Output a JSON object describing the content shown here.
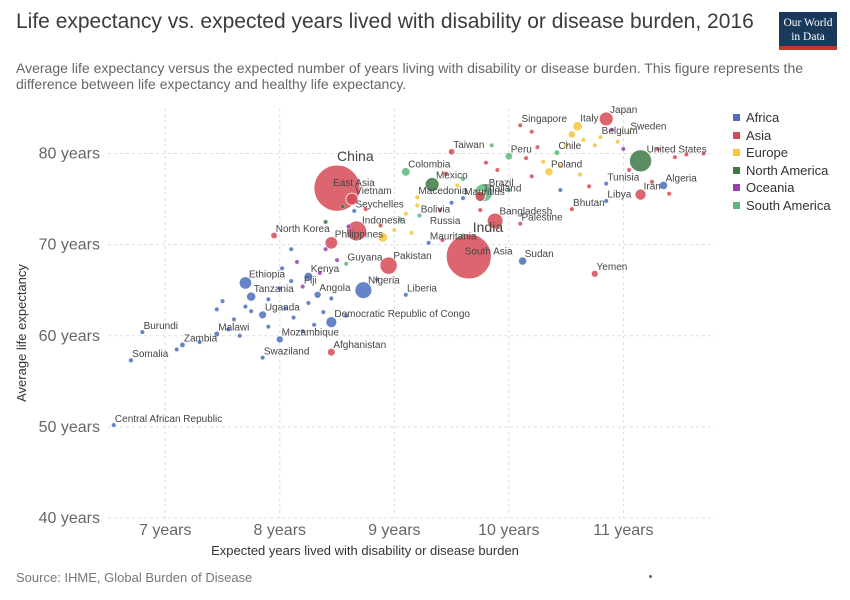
{
  "header": {
    "title": "Life expectancy vs. expected years lived with disability or disease burden, 2016",
    "subtitle": "Average life expectancy versus the expected number of years living with disability or disease burden. This figure represents the difference between life expectancy and healthy life expectancy.",
    "logo_line1": "Our World",
    "logo_line2": "in Data"
  },
  "footer": {
    "source": "Source: IHME, Global Burden of Disease"
  },
  "colors": {
    "Africa": "#4c6fbf",
    "Asia": "#d64a57",
    "Europe": "#f6c63a",
    "North America": "#3d7a45",
    "Oceania": "#9b3fb0",
    "South America": "#5cb87a"
  },
  "chart_data": {
    "type": "scatter",
    "xlabel": "Expected years lived with disability or disease burden",
    "ylabel": "Average life expectancy",
    "xlim": [
      6.5,
      11.8
    ],
    "ylim": [
      40,
      85
    ],
    "x_ticks": [
      7,
      8,
      9,
      10,
      11
    ],
    "x_tick_labels": [
      "7 years",
      "8 years",
      "9 years",
      "10 years",
      "11 years"
    ],
    "y_ticks": [
      40,
      50,
      60,
      70,
      80
    ],
    "y_tick_labels": [
      "40 years",
      "50 years",
      "60 years",
      "70 years",
      "80 years"
    ],
    "grid": true,
    "legend_position": "right",
    "legend": [
      "Africa",
      "Asia",
      "Europe",
      "North America",
      "Oceania",
      "South America"
    ],
    "points": [
      {
        "label": "China",
        "x": 8.5,
        "y": 76.2,
        "continent": "Asia",
        "size": 1380
      },
      {
        "label": "East Asia",
        "x": 8.5,
        "y": 76.2,
        "continent": "Asia",
        "size": 0
      },
      {
        "label": "India",
        "x": 9.65,
        "y": 68.7,
        "continent": "Asia",
        "size": 1320
      },
      {
        "label": "South Asia",
        "x": 9.65,
        "y": 68.7,
        "continent": "Asia",
        "size": 0
      },
      {
        "label": "United States",
        "x": 11.15,
        "y": 79.2,
        "continent": "North America",
        "size": 320
      },
      {
        "label": "Indonesia",
        "x": 8.67,
        "y": 71.5,
        "continent": "Asia",
        "size": 260
      },
      {
        "label": "Brazil",
        "x": 9.78,
        "y": 75.7,
        "continent": "South America",
        "size": 210
      },
      {
        "label": "Pakistan",
        "x": 8.95,
        "y": 67.7,
        "continent": "Asia",
        "size": 195
      },
      {
        "label": "Nigeria",
        "x": 8.73,
        "y": 65.0,
        "continent": "Africa",
        "size": 186
      },
      {
        "label": "Bangladesh",
        "x": 9.88,
        "y": 72.6,
        "continent": "Asia",
        "size": 163
      },
      {
        "label": "Russia",
        "x": 9.3,
        "y": 71.9,
        "continent": "Europe",
        "size": 0
      },
      {
        "label": "Mexico",
        "x": 9.33,
        "y": 76.6,
        "continent": "North America",
        "size": 128
      },
      {
        "label": "Japan",
        "x": 10.85,
        "y": 83.8,
        "continent": "Asia",
        "size": 127
      },
      {
        "label": "Ethiopia",
        "x": 7.7,
        "y": 65.8,
        "continent": "Africa",
        "size": 102
      },
      {
        "label": "Philippines",
        "x": 8.45,
        "y": 70.2,
        "continent": "Asia",
        "size": 103
      },
      {
        "label": "Vietnam",
        "x": 8.63,
        "y": 75.0,
        "continent": "Asia",
        "size": 94
      },
      {
        "label": "Democratic Republic of Congo",
        "x": 8.45,
        "y": 61.5,
        "continent": "Africa",
        "size": 79
      },
      {
        "label": "Iran",
        "x": 11.15,
        "y": 75.5,
        "continent": "Asia",
        "size": 80
      },
      {
        "label": "Thailand",
        "x": 9.75,
        "y": 75.3,
        "continent": "Asia",
        "size": 69
      },
      {
        "label": "Tanzania",
        "x": 7.75,
        "y": 64.3,
        "continent": "Africa",
        "size": 56
      },
      {
        "label": "Colombia",
        "x": 9.1,
        "y": 78.0,
        "continent": "South America",
        "size": 49
      },
      {
        "label": "Kenya",
        "x": 8.25,
        "y": 66.5,
        "continent": "Africa",
        "size": 49
      },
      {
        "label": "Sudan",
        "x": 10.12,
        "y": 68.2,
        "continent": "Africa",
        "size": 40
      },
      {
        "label": "Uganda",
        "x": 7.85,
        "y": 62.3,
        "continent": "Africa",
        "size": 42
      },
      {
        "label": "Algeria",
        "x": 11.35,
        "y": 76.5,
        "continent": "Africa",
        "size": 41
      },
      {
        "label": "Peru",
        "x": 10.0,
        "y": 79.7,
        "continent": "South America",
        "size": 31
      },
      {
        "label": "Mozambique",
        "x": 8.0,
        "y": 59.6,
        "continent": "Africa",
        "size": 29
      },
      {
        "label": "North Korea",
        "x": 7.95,
        "y": 71.0,
        "continent": "Asia",
        "size": 25
      },
      {
        "label": "Angola",
        "x": 8.33,
        "y": 64.5,
        "continent": "Africa",
        "size": 29
      },
      {
        "label": "Poland",
        "x": 10.35,
        "y": 78.0,
        "continent": "Europe",
        "size": 38
      },
      {
        "label": "Italy",
        "x": 10.6,
        "y": 83.0,
        "continent": "Europe",
        "size": 60
      },
      {
        "label": "Chile",
        "x": 10.42,
        "y": 80.1,
        "continent": "South America",
        "size": 18
      },
      {
        "label": "Malawi",
        "x": 7.45,
        "y": 60.2,
        "continent": "Africa",
        "size": 18
      },
      {
        "label": "Zambia",
        "x": 7.15,
        "y": 59.0,
        "continent": "Africa",
        "size": 17
      },
      {
        "label": "Taiwan",
        "x": 9.5,
        "y": 80.2,
        "continent": "Asia",
        "size": 24
      },
      {
        "label": "Somalia",
        "x": 6.7,
        "y": 57.3,
        "continent": "Africa",
        "size": 14
      },
      {
        "label": "Burundi",
        "x": 6.8,
        "y": 60.4,
        "continent": "Africa",
        "size": 11
      },
      {
        "label": "Tunisia",
        "x": 10.85,
        "y": 76.7,
        "continent": "Africa",
        "size": 11
      },
      {
        "label": "Bolivia",
        "x": 9.22,
        "y": 73.2,
        "continent": "South America",
        "size": 11
      },
      {
        "label": "Belgium",
        "x": 10.8,
        "y": 81.8,
        "continent": "Europe",
        "size": 11
      },
      {
        "label": "Sweden",
        "x": 11.05,
        "y": 82.3,
        "continent": "Europe",
        "size": 10
      },
      {
        "label": "Yemen",
        "x": 10.75,
        "y": 66.8,
        "continent": "Asia",
        "size": 28
      },
      {
        "label": "Afghanistan",
        "x": 8.45,
        "y": 58.2,
        "continent": "Asia",
        "size": 35
      },
      {
        "label": "Libya",
        "x": 10.85,
        "y": 74.8,
        "continent": "Africa",
        "size": 6
      },
      {
        "label": "Bhutan",
        "x": 10.55,
        "y": 73.9,
        "continent": "Asia",
        "size": 1
      },
      {
        "label": "Singapore",
        "x": 10.1,
        "y": 83.1,
        "continent": "Asia",
        "size": 6
      },
      {
        "label": "Palestine",
        "x": 10.1,
        "y": 72.3,
        "continent": "Asia",
        "size": 5
      },
      {
        "label": "Mauritania",
        "x": 9.3,
        "y": 70.2,
        "continent": "Africa",
        "size": 4
      },
      {
        "label": "Guyana",
        "x": 8.58,
        "y": 67.9,
        "continent": "South America",
        "size": 1
      },
      {
        "label": "Fiji",
        "x": 8.2,
        "y": 65.4,
        "continent": "Oceania",
        "size": 1
      },
      {
        "label": "Liberia",
        "x": 9.1,
        "y": 64.5,
        "continent": "Africa",
        "size": 5
      },
      {
        "label": "Swaziland",
        "x": 7.85,
        "y": 57.6,
        "continent": "Africa",
        "size": 1
      },
      {
        "label": "Central African Republic",
        "x": 6.55,
        "y": 50.2,
        "continent": "Africa",
        "size": 5
      },
      {
        "label": "Seychelles",
        "x": 8.65,
        "y": 73.7,
        "continent": "Africa",
        "size": 1
      },
      {
        "label": "Macedonia",
        "x": 9.2,
        "y": 75.2,
        "continent": "Europe",
        "size": 2
      },
      {
        "label": "Mauritius",
        "x": 9.6,
        "y": 75.1,
        "continent": "Africa",
        "size": 1
      },
      {
        "label": "",
        "x": 9.45,
        "y": 77.8,
        "continent": "Asia",
        "size": 1
      },
      {
        "label": "",
        "x": 9.6,
        "y": 77.2,
        "continent": "South America",
        "size": 1
      },
      {
        "label": "",
        "x": 9.55,
        "y": 76.5,
        "continent": "Europe",
        "size": 1
      },
      {
        "label": "",
        "x": 9.5,
        "y": 74.6,
        "continent": "Africa",
        "size": 1
      },
      {
        "label": "",
        "x": 9.4,
        "y": 73.8,
        "continent": "Asia",
        "size": 1
      },
      {
        "label": "",
        "x": 9.2,
        "y": 74.3,
        "continent": "Europe",
        "size": 1
      },
      {
        "label": "",
        "x": 9.1,
        "y": 73.4,
        "continent": "Europe",
        "size": 1
      },
      {
        "label": "",
        "x": 9.05,
        "y": 72.8,
        "continent": "South America",
        "size": 1
      },
      {
        "label": "",
        "x": 9.0,
        "y": 71.6,
        "continent": "Europe",
        "size": 1
      },
      {
        "label": "",
        "x": 8.88,
        "y": 72.1,
        "continent": "Asia",
        "size": 1
      },
      {
        "label": "",
        "x": 8.9,
        "y": 70.8,
        "continent": "Europe",
        "size": 60
      },
      {
        "label": "",
        "x": 9.15,
        "y": 71.3,
        "continent": "Europe",
        "size": 1
      },
      {
        "label": "",
        "x": 9.6,
        "y": 71.0,
        "continent": "South America",
        "size": 1
      },
      {
        "label": "",
        "x": 9.42,
        "y": 70.5,
        "continent": "Asia",
        "size": 1
      },
      {
        "label": "",
        "x": 9.8,
        "y": 79.0,
        "continent": "Asia",
        "size": 1
      },
      {
        "label": "",
        "x": 9.9,
        "y": 78.2,
        "continent": "Asia",
        "size": 1
      },
      {
        "label": "",
        "x": 10.2,
        "y": 77.5,
        "continent": "Asia",
        "size": 1
      },
      {
        "label": "",
        "x": 10.3,
        "y": 79.1,
        "continent": "Europe",
        "size": 1
      },
      {
        "label": "",
        "x": 10.45,
        "y": 78.6,
        "continent": "Europe",
        "size": 1
      },
      {
        "label": "",
        "x": 10.65,
        "y": 81.5,
        "continent": "Europe",
        "size": 1
      },
      {
        "label": "",
        "x": 10.55,
        "y": 82.1,
        "continent": "Europe",
        "size": 30
      },
      {
        "label": "",
        "x": 10.75,
        "y": 80.9,
        "continent": "Europe",
        "size": 1
      },
      {
        "label": "",
        "x": 10.95,
        "y": 81.3,
        "continent": "Europe",
        "size": 1
      },
      {
        "label": "",
        "x": 11.0,
        "y": 80.5,
        "continent": "Oceania",
        "size": 1
      },
      {
        "label": "",
        "x": 10.9,
        "y": 82.6,
        "continent": "Oceania",
        "size": 1
      },
      {
        "label": "",
        "x": 10.25,
        "y": 80.7,
        "continent": "Asia",
        "size": 1
      },
      {
        "label": "",
        "x": 10.2,
        "y": 82.4,
        "continent": "Asia",
        "size": 1
      },
      {
        "label": "",
        "x": 10.5,
        "y": 80.9,
        "continent": "Europe",
        "size": 1
      },
      {
        "label": "",
        "x": 10.62,
        "y": 77.7,
        "continent": "Europe",
        "size": 1
      },
      {
        "label": "",
        "x": 10.7,
        "y": 76.4,
        "continent": "Asia",
        "size": 1
      },
      {
        "label": "",
        "x": 10.45,
        "y": 76.0,
        "continent": "Africa",
        "size": 1
      },
      {
        "label": "",
        "x": 11.05,
        "y": 78.2,
        "continent": "Asia",
        "size": 1
      },
      {
        "label": "",
        "x": 11.3,
        "y": 80.5,
        "continent": "Asia",
        "size": 1
      },
      {
        "label": "",
        "x": 11.45,
        "y": 79.6,
        "continent": "Asia",
        "size": 1
      },
      {
        "label": "",
        "x": 11.55,
        "y": 79.9,
        "continent": "Asia",
        "size": 1
      },
      {
        "label": "",
        "x": 11.7,
        "y": 80.0,
        "continent": "Asia",
        "size": 1
      },
      {
        "label": "",
        "x": 11.25,
        "y": 76.9,
        "continent": "Asia",
        "size": 1
      },
      {
        "label": "",
        "x": 11.4,
        "y": 75.6,
        "continent": "Asia",
        "size": 1
      },
      {
        "label": "",
        "x": 9.85,
        "y": 80.9,
        "continent": "South America",
        "size": 1
      },
      {
        "label": "",
        "x": 10.15,
        "y": 79.5,
        "continent": "Asia",
        "size": 1
      },
      {
        "label": "",
        "x": 10.0,
        "y": 76.0,
        "continent": "South America",
        "size": 1
      },
      {
        "label": "",
        "x": 9.75,
        "y": 73.8,
        "continent": "Asia",
        "size": 1
      },
      {
        "label": "",
        "x": 8.4,
        "y": 72.5,
        "continent": "North America",
        "size": 1
      },
      {
        "label": "",
        "x": 8.55,
        "y": 74.2,
        "continent": "North America",
        "size": 1
      },
      {
        "label": "",
        "x": 8.75,
        "y": 73.9,
        "continent": "Asia",
        "size": 1
      },
      {
        "label": "",
        "x": 8.6,
        "y": 72.0,
        "continent": "Oceania",
        "size": 1
      },
      {
        "label": "",
        "x": 8.4,
        "y": 69.5,
        "continent": "Oceania",
        "size": 1
      },
      {
        "label": "",
        "x": 8.5,
        "y": 68.3,
        "continent": "Oceania",
        "size": 1
      },
      {
        "label": "",
        "x": 8.1,
        "y": 69.5,
        "continent": "Africa",
        "size": 1
      },
      {
        "label": "",
        "x": 8.15,
        "y": 68.1,
        "continent": "Oceania",
        "size": 1
      },
      {
        "label": "",
        "x": 8.02,
        "y": 67.4,
        "continent": "Africa",
        "size": 1
      },
      {
        "label": "",
        "x": 8.35,
        "y": 66.9,
        "continent": "Oceania",
        "size": 1
      },
      {
        "label": "",
        "x": 8.1,
        "y": 66.0,
        "continent": "Africa",
        "size": 1
      },
      {
        "label": "",
        "x": 8.0,
        "y": 65.2,
        "continent": "Africa",
        "size": 1
      },
      {
        "label": "",
        "x": 7.9,
        "y": 64.0,
        "continent": "Africa",
        "size": 1
      },
      {
        "label": "",
        "x": 8.25,
        "y": 63.6,
        "continent": "Africa",
        "size": 1
      },
      {
        "label": "",
        "x": 8.05,
        "y": 63.0,
        "continent": "Africa",
        "size": 1
      },
      {
        "label": "",
        "x": 7.75,
        "y": 62.7,
        "continent": "Africa",
        "size": 1
      },
      {
        "label": "",
        "x": 7.6,
        "y": 61.8,
        "continent": "Africa",
        "size": 1
      },
      {
        "label": "",
        "x": 7.55,
        "y": 60.7,
        "continent": "Africa",
        "size": 1
      },
      {
        "label": "",
        "x": 7.45,
        "y": 62.9,
        "continent": "Africa",
        "size": 1
      },
      {
        "label": "",
        "x": 7.5,
        "y": 63.8,
        "continent": "Africa",
        "size": 1
      },
      {
        "label": "",
        "x": 7.3,
        "y": 59.3,
        "continent": "Africa",
        "size": 1
      },
      {
        "label": "",
        "x": 7.65,
        "y": 60.0,
        "continent": "Africa",
        "size": 1
      },
      {
        "label": "",
        "x": 7.9,
        "y": 61.0,
        "continent": "Africa",
        "size": 1
      },
      {
        "label": "",
        "x": 8.12,
        "y": 62.0,
        "continent": "Africa",
        "size": 1
      },
      {
        "label": "",
        "x": 8.3,
        "y": 61.2,
        "continent": "Africa",
        "size": 1
      },
      {
        "label": "",
        "x": 8.38,
        "y": 62.6,
        "continent": "Africa",
        "size": 1
      },
      {
        "label": "",
        "x": 8.58,
        "y": 62.2,
        "continent": "Africa",
        "size": 1
      },
      {
        "label": "",
        "x": 7.1,
        "y": 58.5,
        "continent": "Africa",
        "size": 1
      },
      {
        "label": "",
        "x": 7.7,
        "y": 63.2,
        "continent": "Africa",
        "size": 1
      },
      {
        "label": "",
        "x": 8.45,
        "y": 64.1,
        "continent": "Africa",
        "size": 1
      },
      {
        "label": "",
        "x": 8.85,
        "y": 66.2,
        "continent": "Africa",
        "size": 1
      },
      {
        "label": "",
        "x": 8.2,
        "y": 60.5,
        "continent": "Africa",
        "size": 1
      }
    ]
  }
}
